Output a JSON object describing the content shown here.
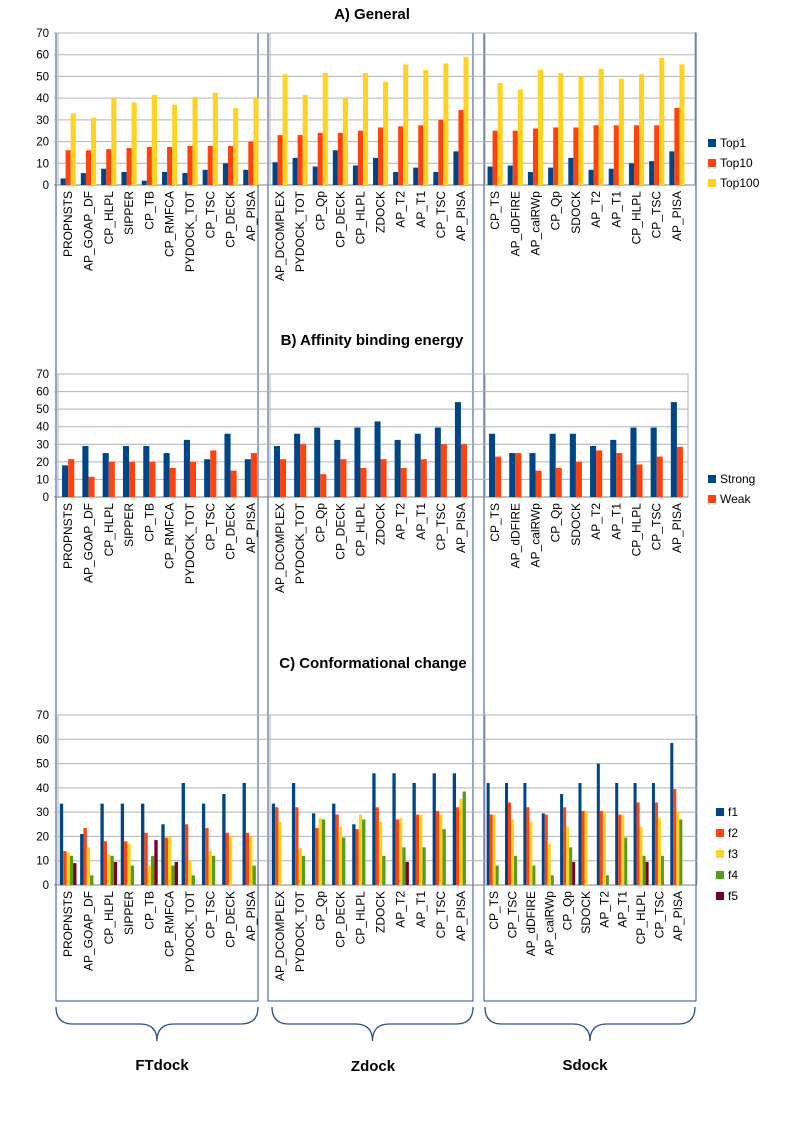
{
  "groups": [
    "FTdock",
    "Zdock",
    "Sdock"
  ],
  "colors": {
    "Top1": "#004586",
    "Top10": "#ff420e",
    "Top100": "#ffd320",
    "Strong": "#004586",
    "Weak": "#ff420e",
    "f1": "#004586",
    "f2": "#ff420e",
    "f3": "#ffd320",
    "f4": "#579d1c",
    "f5": "#7e0021",
    "frame": "#2b4f86",
    "grid": "#b3b3b3"
  },
  "chart_data": [
    {
      "id": "A",
      "type": "bar",
      "title": "A) General",
      "ylim": [
        0,
        70
      ],
      "yticks": [
        "0",
        "10",
        "20",
        "30",
        "40",
        "50",
        "60",
        "70"
      ],
      "legend": [
        "Top1",
        "Top10",
        "Top100"
      ],
      "panels": [
        {
          "categories": [
            "PROPNSTS",
            "AP_GOAP_DF",
            "CP_HLPL",
            "SIPPER",
            "CP_TB",
            "CP_RMFCA",
            "PYDOCK_TOT",
            "CP_TSC",
            "CP_DECK",
            "AP_PISA"
          ],
          "series": [
            {
              "name": "Top1",
              "values": [
                3,
                5.5,
                7.5,
                6,
                2,
                6,
                5.5,
                7,
                10,
                7
              ]
            },
            {
              "name": "Top10",
              "values": [
                16,
                16,
                16.5,
                17,
                17.5,
                17.5,
                18,
                18,
                18,
                20
              ]
            },
            {
              "name": "Top100",
              "values": [
                33,
                31,
                40,
                38,
                41.5,
                37,
                40.5,
                42.5,
                35.5,
                40
              ]
            }
          ]
        },
        {
          "categories": [
            "AP_DCOMPLEX",
            "PYDOCK_TOT",
            "CP_Qp",
            "CP_DECK",
            "CP_HLPL",
            "ZDOCK",
            "AP_T2",
            "AP_T1",
            "CP_TSC",
            "AP_PISA"
          ],
          "series": [
            {
              "name": "Top1",
              "values": [
                10.5,
                12.5,
                8.5,
                16,
                9,
                12.5,
                6,
                8,
                6,
                15.5
              ]
            },
            {
              "name": "Top10",
              "values": [
                23,
                23,
                24,
                24,
                25,
                26.5,
                27,
                27.5,
                30,
                34.5
              ]
            },
            {
              "name": "Top100",
              "values": [
                51,
                41.5,
                51.5,
                40,
                51.5,
                47.5,
                55.5,
                53,
                56,
                59
              ]
            }
          ]
        },
        {
          "categories": [
            "CP_TS",
            "AP_dDFIRE",
            "AP_calRWp",
            "CP_Qp",
            "SDOCK",
            "AP_T2",
            "AP_T1",
            "CP_HLPL",
            "CP_TSC",
            "AP_PISA"
          ],
          "series": [
            {
              "name": "Top1",
              "values": [
                8.5,
                9,
                6,
                8,
                12.5,
                7,
                7.5,
                10,
                11,
                15.5
              ]
            },
            {
              "name": "Top10",
              "values": [
                25,
                25,
                26,
                26.5,
                26.5,
                27.5,
                27.5,
                27.5,
                27.5,
                35.5
              ]
            },
            {
              "name": "Top100",
              "values": [
                47,
                44,
                53,
                51.5,
                50,
                53.5,
                49,
                51,
                58.5,
                55.5
              ]
            }
          ]
        }
      ]
    },
    {
      "id": "B",
      "type": "bar",
      "title": "B) Affinity binding energy",
      "ylim": [
        0,
        70
      ],
      "yticks": [
        "0",
        "10",
        "20",
        "30",
        "40",
        "50",
        "60",
        "70"
      ],
      "legend": [
        "Strong",
        "Weak"
      ],
      "panels": [
        {
          "categories": [
            "PROPNSTS",
            "AP_GOAP_DF",
            "CP_HLPL",
            "SIPPER",
            "CP_TB",
            "CP_RMFCA",
            "PYDOCK_TOT",
            "CP_TSC",
            "CP_DECK",
            "AP_PISA"
          ],
          "series": [
            {
              "name": "Strong",
              "values": [
                18,
                29,
                25,
                29,
                29,
                25,
                32.5,
                21.5,
                36,
                21.5
              ]
            },
            {
              "name": "Weak",
              "values": [
                21.5,
                11.5,
                20,
                20,
                20,
                16.5,
                20,
                26.5,
                15,
                25
              ]
            }
          ]
        },
        {
          "categories": [
            "AP_DCOMPLEX",
            "PYDOCK_TOT",
            "CP_Qp",
            "CP_DECK",
            "CP_HLPL",
            "ZDOCK",
            "AP_T2",
            "AP_T1",
            "CP_TSC",
            "AP_PISA"
          ],
          "series": [
            {
              "name": "Strong",
              "values": [
                29,
                36,
                39.5,
                32.5,
                39.5,
                43,
                32.5,
                36,
                39.5,
                54
              ]
            },
            {
              "name": "Weak",
              "values": [
                21.5,
                30,
                13,
                21.5,
                16.5,
                21.5,
                16.5,
                21.5,
                30,
                30
              ]
            }
          ]
        },
        {
          "categories": [
            "CP_TS",
            "AP_dDFIRE",
            "AP_calRWp",
            "CP_Qp",
            "SDOCK",
            "AP_T2",
            "AP_T1",
            "CP_HLPL",
            "CP_TSC",
            "AP_PISA"
          ],
          "series": [
            {
              "name": "Strong",
              "values": [
                36,
                25,
                25,
                36,
                36,
                29,
                32.5,
                39.5,
                39.5,
                54
              ]
            },
            {
              "name": "Weak",
              "values": [
                23,
                25,
                15,
                16.5,
                20,
                26.5,
                25,
                18.5,
                23,
                28.5
              ]
            }
          ]
        }
      ]
    },
    {
      "id": "C",
      "type": "bar",
      "title": "C) Conformational change",
      "ylim": [
        0,
        70
      ],
      "yticks": [
        "0",
        "10",
        "20",
        "30",
        "40",
        "50",
        "60",
        "70"
      ],
      "legend": [
        "f1",
        "f2",
        "f3",
        "f4",
        "f5"
      ],
      "panels": [
        {
          "categories": [
            "PROPNSTS",
            "AP_GOAP_DF",
            "CP_HLPL",
            "SIPPER",
            "CP_TB",
            "CP_RMFCA",
            "PYDOCK_TOT",
            "CP_TSC",
            "CP_DECK",
            "AP_PISA"
          ],
          "series": [
            {
              "name": "f1",
              "values": [
                33.5,
                21,
                33.5,
                33.5,
                33.5,
                25,
                42,
                33.5,
                37.5,
                42
              ]
            },
            {
              "name": "f2",
              "values": [
                14,
                23.5,
                18,
                18,
                21.5,
                19.5,
                25,
                23.5,
                21.5,
                21.5
              ]
            },
            {
              "name": "f3",
              "values": [
                13.5,
                15.5,
                12.5,
                17,
                8,
                20,
                10,
                14,
                20,
                20
              ]
            },
            {
              "name": "f4",
              "values": [
                12,
                4,
                12,
                8,
                12,
                8,
                4,
                12,
                0,
                8
              ]
            },
            {
              "name": "f5",
              "values": [
                9,
                0,
                9.5,
                0,
                18.5,
                9.5,
                0,
                0,
                0,
                0
              ]
            }
          ]
        },
        {
          "categories": [
            "AP_DCOMPLEX",
            "PYDOCK_TOT",
            "CP_Qp",
            "CP_DECK",
            "CP_HLPL",
            "ZDOCK",
            "AP_T2",
            "AP_T1",
            "CP_TSC",
            "AP_PISA"
          ],
          "series": [
            {
              "name": "f1",
              "values": [
                33.5,
                42,
                29.5,
                33.5,
                25,
                46,
                46,
                42,
                46,
                46
              ]
            },
            {
              "name": "f2",
              "values": [
                32,
                32,
                23.5,
                29,
                23,
                32,
                27,
                29,
                30.5,
                32
              ]
            },
            {
              "name": "f3",
              "values": [
                26,
                15,
                27.5,
                24,
                29,
                26,
                27.5,
                29,
                29,
                35.5
              ]
            },
            {
              "name": "f4",
              "values": [
                0,
                12,
                27,
                19.5,
                27,
                12,
                15.5,
                15.5,
                23,
                38.5
              ]
            },
            {
              "name": "f5",
              "values": [
                0,
                0,
                0,
                0,
                0,
                0,
                9.5,
                0,
                0,
                0
              ]
            }
          ]
        },
        {
          "categories": [
            "CP_TS",
            "CP_TSC",
            "AP_dDFIRE",
            "AP_calRWp",
            "CP_Qp",
            "SDOCK",
            "AP_T2",
            "AP_T1",
            "CP_HLPL",
            "CP_TSC",
            "AP_PISA"
          ],
          "series": [
            {
              "name": "f1",
              "values": [
                42,
                42,
                42,
                29.5,
                37.5,
                42,
                50,
                42,
                42,
                42,
                58.5
              ]
            },
            {
              "name": "f2",
              "values": [
                29,
                34,
                32,
                29,
                32,
                30.5,
                30.5,
                29,
                34,
                34,
                39.5
              ]
            },
            {
              "name": "f3",
              "values": [
                29,
                27,
                26,
                17,
                24,
                30.5,
                30,
                29,
                24,
                27.5,
                30
              ]
            },
            {
              "name": "f4",
              "values": [
                8,
                12,
                8,
                4,
                15.5,
                0,
                4,
                19.5,
                12,
                12,
                27
              ]
            },
            {
              "name": "f5",
              "values": [
                0,
                0,
                0,
                0,
                9.5,
                0,
                0,
                0,
                9.5,
                0,
                0
              ]
            }
          ]
        }
      ]
    }
  ]
}
